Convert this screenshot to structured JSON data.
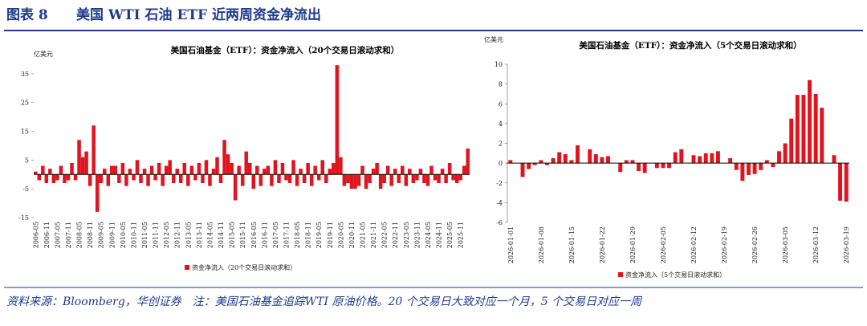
{
  "header": {
    "label": "图表 8",
    "title": "美国 WTI 石油 ETF 近两周资金净流出"
  },
  "chart_data": [
    {
      "type": "bar",
      "title": "美国石油基金（ETF）：资金净流入（20个交易日滚动求和）",
      "y_unit": "亿美元",
      "categories": [
        "2006-05",
        null,
        null,
        "2006-11",
        null,
        null,
        "2007-05",
        null,
        null,
        "2007-11",
        null,
        null,
        "2008-05",
        null,
        null,
        "2008-11",
        null,
        null,
        "2009-05",
        null,
        null,
        "2009-11",
        null,
        null,
        "2010-05",
        null,
        null,
        "2010-11",
        null,
        null,
        "2011-05",
        null,
        null,
        "2011-11",
        null,
        null,
        "2012-05",
        null,
        null,
        "2012-11",
        null,
        null,
        "2013-05",
        null,
        null,
        "2013-11",
        null,
        null,
        "2014-05",
        null,
        null,
        "2014-11",
        null,
        null,
        "2015-05",
        null,
        null,
        "2015-11",
        null,
        null,
        "2016-05",
        null,
        null,
        "2016-11",
        null,
        null,
        "2017-05",
        null,
        null,
        "2017-11",
        null,
        null,
        "2018-05",
        null,
        null,
        "2018-11",
        null,
        null,
        "2019-05",
        null,
        null,
        "2019-11",
        null,
        null,
        "2020-05",
        null,
        null,
        "2020-11",
        null,
        null,
        "2021-05",
        null,
        null,
        "2021-11",
        null,
        null,
        "2022-05",
        null,
        null,
        "2022-11",
        null,
        null,
        "2023-05",
        null,
        null,
        "2023-11",
        null,
        null,
        "2024-05",
        null,
        null,
        "2024-11",
        null,
        null,
        "2025-05",
        null,
        null,
        "2025-11",
        null,
        null
      ],
      "series": [
        {
          "name": "资金净流入（20个交易日滚动求和）",
          "color": "#e0141e",
          "values": [
            1,
            -2,
            3,
            -3,
            2,
            -3,
            -2,
            3,
            -3,
            -2,
            4,
            -2,
            12,
            6,
            8,
            -4,
            17,
            -13,
            -3,
            2,
            -4,
            3,
            3,
            -3,
            4,
            -4,
            2,
            -2,
            5,
            -3,
            2,
            -4,
            3,
            -2,
            4,
            -4,
            3,
            5,
            -3,
            2,
            -3,
            4,
            -4,
            3,
            -2,
            4,
            -3,
            5,
            -4,
            2,
            6,
            -3,
            12,
            7,
            4,
            -9,
            3,
            -4,
            8,
            4,
            -5,
            3,
            -4,
            2,
            3,
            -4,
            5,
            -3,
            4,
            -2,
            -3,
            5,
            -4,
            2,
            -3,
            4,
            -4,
            3,
            -2,
            5,
            -3,
            2,
            4,
            38,
            6,
            -4,
            -3,
            -5,
            -5,
            -4,
            3,
            -5,
            -3,
            2,
            4,
            -5,
            -3,
            3,
            -4,
            2,
            -3,
            3,
            -4,
            2,
            -3,
            -2,
            2,
            -3,
            -4,
            3,
            -2,
            -3,
            2,
            -3,
            4,
            -2,
            -3,
            -2,
            3,
            9
          ]
        }
      ],
      "ylim": [
        -15,
        40
      ],
      "yticks": [
        -15,
        -5,
        5,
        15,
        25,
        35
      ],
      "grid": false,
      "legend": "bottom"
    },
    {
      "type": "bar",
      "title": "美国石油基金（ETF）：资金净流入（5个交易日滚动求和）",
      "y_unit": "亿美元",
      "categories": [
        "2026-01-01",
        null,
        null,
        null,
        null,
        "2026-01-08",
        null,
        null,
        null,
        null,
        "2026-01-15",
        null,
        null,
        null,
        null,
        "2026-01-22",
        null,
        null,
        null,
        null,
        "2026-01-29",
        null,
        null,
        null,
        null,
        "2026-02-05",
        null,
        null,
        null,
        null,
        "2026-02-12",
        null,
        null,
        null,
        null,
        "2026-02-19",
        null,
        null,
        null,
        null,
        "2026-02-26",
        null,
        null,
        null,
        null,
        "2026-03-05",
        null,
        null,
        null,
        null,
        "2026-03-12",
        null,
        null,
        null,
        null,
        "2026-03-19"
      ],
      "series": [
        {
          "name": "资金净流入（5个交易日滚动求和）",
          "color": "#e0141e",
          "values": [
            0.3,
            0,
            -1.4,
            -0.6,
            -0.2,
            0.3,
            -0.2,
            0.5,
            1.1,
            0.9,
            0.3,
            1.8,
            0,
            1.4,
            0.9,
            0.6,
            0.7,
            0,
            -0.9,
            0.3,
            0.3,
            -0.8,
            -1.0,
            0,
            -0.5,
            -0.5,
            -0.5,
            1.1,
            1.4,
            0,
            0.8,
            0.7,
            1.0,
            1.0,
            1.2,
            0,
            0.5,
            -0.7,
            -1.8,
            -1.2,
            -1.1,
            -0.7,
            0.3,
            -0.4,
            1.2,
            2.0,
            4.5,
            6.9,
            6.9,
            8.4,
            7.0,
            5.6,
            0,
            0.8,
            -3.8,
            -3.9
          ]
        }
      ],
      "ylim": [
        -6,
        10
      ],
      "yticks": [
        -6,
        -4,
        -2,
        0,
        2,
        4,
        6,
        8,
        10
      ],
      "grid": false,
      "legend": "bottom"
    }
  ],
  "footer": "资料来源：Bloomberg，华创证券　注：美国石油基金追踪WTI 原油价格。20 个交易日大致对应一个月，5 个交易日对应一周"
}
